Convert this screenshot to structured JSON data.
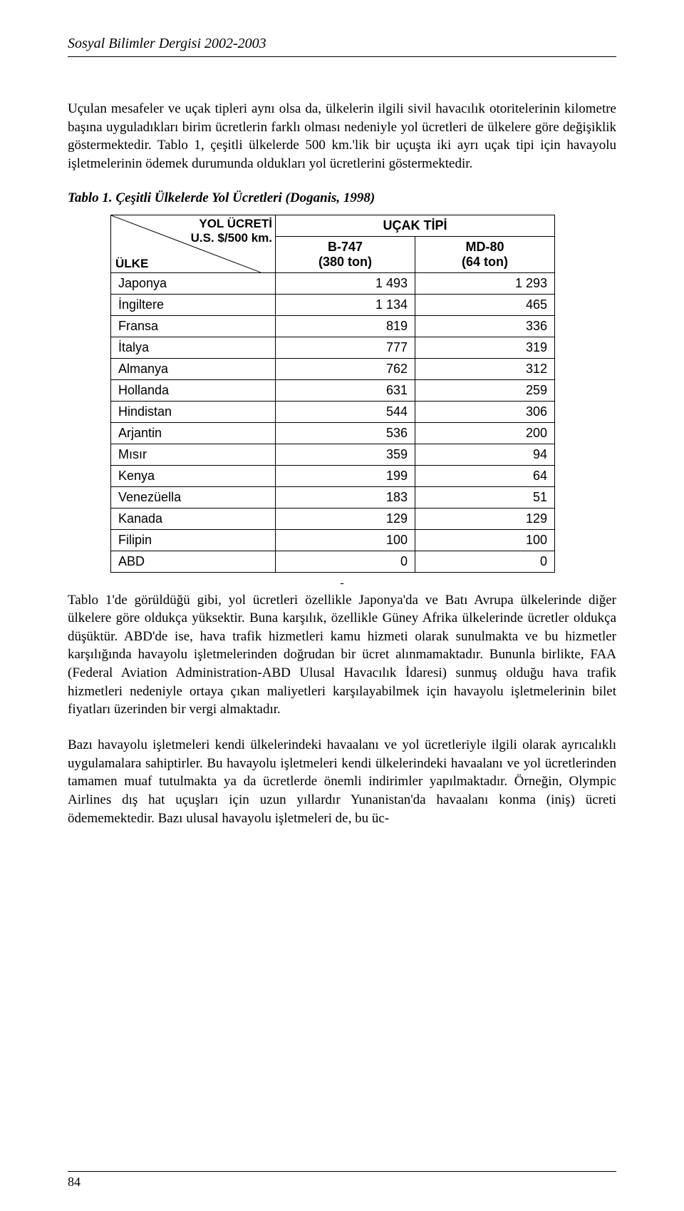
{
  "running_head": "Sosyal Bilimler Dergisi 2002-2003",
  "para1": "Uçulan mesafeler ve uçak tipleri aynı olsa da, ülkelerin ilgili sivil havacılık otoritelerinin kilometre başına uyguladıkları birim ücretlerin farklı olması nedeniyle yol ücretleri de ülkelere göre değişiklik göstermektedir. Tablo 1, çeşitli ülkelerde 500 km.'lik bir uçuşta iki ayrı uçak tipi için havayolu işletmelerinin ödemek durumunda oldukları yol ücretlerini göstermektedir.",
  "table_caption": "Tablo 1. Çeşitli Ülkelerde Yol Ücretleri (Doganis, 1998)",
  "table": {
    "diag_top_line1": "YOL ÜCRETİ",
    "diag_top_line2": "U.S. $/500 km.",
    "diag_bottom": "ÜLKE",
    "group_header": "UÇAK TİPİ",
    "col1_name": "B-747",
    "col1_sub": "(380 ton)",
    "col2_name": "MD-80",
    "col2_sub": "(64 ton)",
    "rows": [
      {
        "c": "Japonya",
        "v1": "1 493",
        "v2": "1 293"
      },
      {
        "c": "İngiltere",
        "v1": "1 134",
        "v2": "465"
      },
      {
        "c": "Fransa",
        "v1": "819",
        "v2": "336"
      },
      {
        "c": "İtalya",
        "v1": "777",
        "v2": "319"
      },
      {
        "c": "Almanya",
        "v1": "762",
        "v2": "312"
      },
      {
        "c": "Hollanda",
        "v1": "631",
        "v2": "259"
      },
      {
        "c": "Hindistan",
        "v1": "544",
        "v2": "306"
      },
      {
        "c": "Arjantin",
        "v1": "536",
        "v2": "200"
      },
      {
        "c": "Mısır",
        "v1": "359",
        "v2": "94"
      },
      {
        "c": "Kenya",
        "v1": "199",
        "v2": "64"
      },
      {
        "c": "Venezüella",
        "v1": "183",
        "v2": "51"
      },
      {
        "c": "Kanada",
        "v1": "129",
        "v2": "129"
      },
      {
        "c": "Filipin",
        "v1": "100",
        "v2": "100"
      },
      {
        "c": "ABD",
        "v1": "0",
        "v2": "0"
      }
    ]
  },
  "dash": "-",
  "para2": "Tablo 1'de görüldüğü gibi, yol ücretleri özellikle Japonya'da ve Batı Avrupa ülkelerinde diğer ülkelere göre oldukça yüksektir. Buna karşılık, özellikle Güney Afrika ülkelerinde ücretler oldukça düşüktür. ABD'de ise, hava trafik hizmetleri kamu hizmeti olarak sunulmakta ve bu hizmetler karşılığında havayolu işletmelerinden doğrudan bir ücret alınmamaktadır. Bununla birlikte, FAA (Federal Aviation Administration-ABD Ulusal Havacılık İdaresi) sunmuş olduğu hava trafik hizmetleri nedeniyle ortaya çıkan maliyetleri karşılayabilmek için havayolu işletmelerinin bilet fiyatları üzerinden bir vergi almaktadır.",
  "para3": "Bazı havayolu işletmeleri kendi ülkelerindeki havaalanı ve yol ücretleriyle ilgili olarak ayrıcalıklı uygulamalara sahiptirler. Bu havayolu işletmeleri kendi ülkelerindeki havaalanı ve yol ücretlerinden tamamen muaf tutulmakta ya da ücretlerde önemli indirimler yapılmaktadır. Örneğin, Olympic Airlines dış hat uçuşları için uzun yıllardır Yunanistan'da havaalanı konma (iniş) ücreti ödememektedir. Bazı ulusal havayolu işletmeleri de, bu üc-",
  "page_number": "84"
}
